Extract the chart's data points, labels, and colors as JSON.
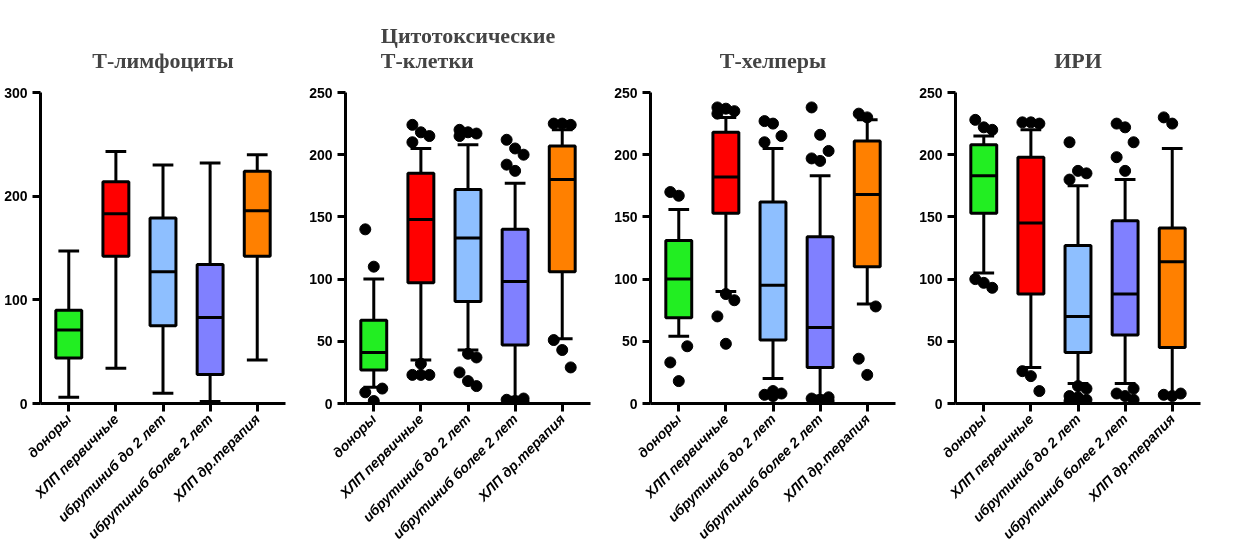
{
  "chart_data": [
    {
      "type": "box",
      "title": "Т-лимфоциты",
      "categories": [
        "доноры",
        "ХЛП первичные",
        "ибрутиниб до 2 лет",
        "ибрутиниб более 2 лет",
        "ХЛП др.терапия"
      ],
      "colors": [
        "#22ee22",
        "#ff0000",
        "#8ebfff",
        "#8080ff",
        "#ff8000"
      ],
      "ylim": [
        0,
        300
      ],
      "yticks": [
        0,
        100,
        200,
        300
      ],
      "boxes": [
        {
          "low": 6,
          "q1": 44,
          "median": 71,
          "q3": 90,
          "high": 147
        },
        {
          "low": 34,
          "q1": 142,
          "median": 183,
          "q3": 214,
          "high": 243
        },
        {
          "low": 10,
          "q1": 75,
          "median": 127,
          "q3": 179,
          "high": 230
        },
        {
          "low": 2,
          "q1": 28,
          "median": 83,
          "q3": 134,
          "high": 232
        },
        {
          "low": 42,
          "q1": 142,
          "median": 186,
          "q3": 224,
          "high": 240
        }
      ]
    },
    {
      "type": "box",
      "title": "Цитотоксические\nТ-клетки",
      "categories": [
        "доноры",
        "ХЛП первичные",
        "ибрутиниб до 2 лет",
        "ибрутиниб более 2 лет",
        "ХЛП др.терапия"
      ],
      "colors": [
        "#22ee22",
        "#ff0000",
        "#8ebfff",
        "#8080ff",
        "#ff8000"
      ],
      "ylim": [
        0,
        250
      ],
      "yticks": [
        0,
        50,
        100,
        150,
        200,
        250
      ],
      "boxes": [
        {
          "low": 13,
          "q1": 27,
          "median": 41,
          "q3": 67,
          "high": 100,
          "outliers": [
            140,
            110,
            12,
            9,
            2
          ]
        },
        {
          "low": 35,
          "q1": 97,
          "median": 148,
          "q3": 185,
          "high": 205,
          "outliers": [
            224,
            218,
            215,
            210,
            32,
            23,
            23,
            23
          ]
        },
        {
          "low": 43,
          "q1": 82,
          "median": 133,
          "q3": 172,
          "high": 208,
          "outliers": [
            220,
            218,
            217,
            215,
            40,
            37,
            25,
            18,
            14
          ]
        },
        {
          "low": 5,
          "q1": 47,
          "median": 98,
          "q3": 140,
          "high": 177,
          "outliers": [
            212,
            205,
            200,
            192,
            187,
            4,
            3,
            2,
            1
          ]
        },
        {
          "low": 52,
          "q1": 106,
          "median": 180,
          "q3": 207,
          "high": 220,
          "outliers": [
            225,
            225,
            224,
            51,
            43,
            29
          ]
        }
      ]
    },
    {
      "type": "box",
      "title": "Т-хелперы",
      "categories": [
        "доноры",
        "ХЛП первичные",
        "ибрутиниб до 2 лет",
        "ибрутиниб более 2 лет",
        "ХЛП др.терапия"
      ],
      "colors": [
        "#22ee22",
        "#ff0000",
        "#8ebfff",
        "#8080ff",
        "#ff8000"
      ],
      "ylim": [
        0,
        250
      ],
      "yticks": [
        0,
        50,
        100,
        150,
        200,
        250
      ],
      "boxes": [
        {
          "low": 54,
          "q1": 69,
          "median": 100,
          "q3": 131,
          "high": 156,
          "outliers": [
            170,
            167,
            46,
            33,
            18
          ]
        },
        {
          "low": 90,
          "q1": 153,
          "median": 182,
          "q3": 218,
          "high": 230,
          "outliers": [
            238,
            237,
            235,
            233,
            88,
            83,
            70,
            48
          ]
        },
        {
          "low": 20,
          "q1": 51,
          "median": 95,
          "q3": 162,
          "high": 205,
          "outliers": [
            227,
            225,
            215,
            210,
            10,
            8,
            7,
            6
          ]
        },
        {
          "low": 6,
          "q1": 29,
          "median": 61,
          "q3": 134,
          "high": 183,
          "outliers": [
            238,
            216,
            203,
            197,
            195,
            5,
            4,
            3,
            2
          ]
        },
        {
          "low": 80,
          "q1": 110,
          "median": 168,
          "q3": 211,
          "high": 228,
          "outliers": [
            233,
            230,
            78,
            36,
            23
          ]
        }
      ]
    },
    {
      "type": "box",
      "title": "ИРИ",
      "categories": [
        "доноры",
        "ХЛП первичные",
        "ибрутиниб до 2 лет",
        "ибрутиниб более 2 лет",
        "ХЛП др.терапия"
      ],
      "colors": [
        "#22ee22",
        "#ff0000",
        "#8ebfff",
        "#8080ff",
        "#ff8000"
      ],
      "ylim": [
        0,
        250
      ],
      "yticks": [
        0,
        50,
        100,
        150,
        200,
        250
      ],
      "boxes": [
        {
          "low": 105,
          "q1": 153,
          "median": 183,
          "q3": 208,
          "high": 215,
          "outliers": [
            228,
            222,
            220,
            100,
            97,
            93
          ]
        },
        {
          "low": 29,
          "q1": 88,
          "median": 145,
          "q3": 198,
          "high": 220,
          "outliers": [
            226,
            226,
            225,
            26,
            22,
            10
          ]
        },
        {
          "low": 16,
          "q1": 41,
          "median": 70,
          "q3": 127,
          "high": 175,
          "outliers": [
            210,
            187,
            185,
            180,
            14,
            12,
            6,
            5,
            3,
            2
          ]
        },
        {
          "low": 16,
          "q1": 55,
          "median": 88,
          "q3": 147,
          "high": 180,
          "outliers": [
            225,
            222,
            210,
            198,
            187,
            12,
            8,
            6,
            3
          ]
        },
        {
          "low": 6,
          "q1": 45,
          "median": 114,
          "q3": 141,
          "high": 205,
          "outliers": [
            230,
            225,
            8,
            7,
            6
          ]
        }
      ]
    }
  ]
}
